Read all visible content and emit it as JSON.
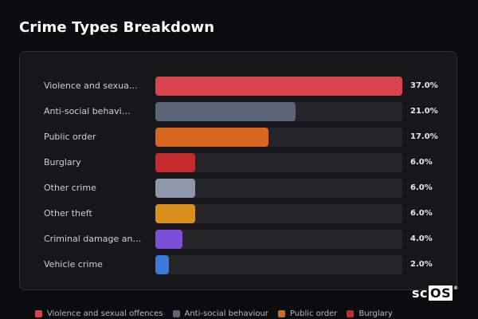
{
  "title": "Crime Types Breakdown",
  "chart_data": {
    "type": "bar",
    "orientation": "horizontal",
    "xlim": [
      0,
      37
    ],
    "categories": [
      "Violence and sexua…",
      "Anti-social behavi…",
      "Public order",
      "Burglary",
      "Other crime",
      "Other theft",
      "Criminal damage an…",
      "Vehicle crime"
    ],
    "values": [
      37.0,
      21.0,
      17.0,
      6.0,
      6.0,
      6.0,
      4.0,
      2.0
    ],
    "value_labels": [
      "37.0%",
      "21.0%",
      "17.0%",
      "6.0%",
      "6.0%",
      "6.0%",
      "4.0%",
      "2.0%"
    ],
    "colors": [
      "#d9434d",
      "#5b6577",
      "#d9661e",
      "#c42a2e",
      "#8e97a8",
      "#d98f1b",
      "#7a4ed6",
      "#3b78d8"
    ]
  },
  "legend": [
    {
      "label": "Violence and sexual offences",
      "color": "#d9434d"
    },
    {
      "label": "Anti-social behaviour",
      "color": "#5b6577"
    },
    {
      "label": "Public order",
      "color": "#d9661e"
    },
    {
      "label": "Burglary",
      "color": "#c42a2e"
    }
  ],
  "logo": {
    "prefix": "sc",
    "boxed": "OS",
    "mark": "®"
  }
}
